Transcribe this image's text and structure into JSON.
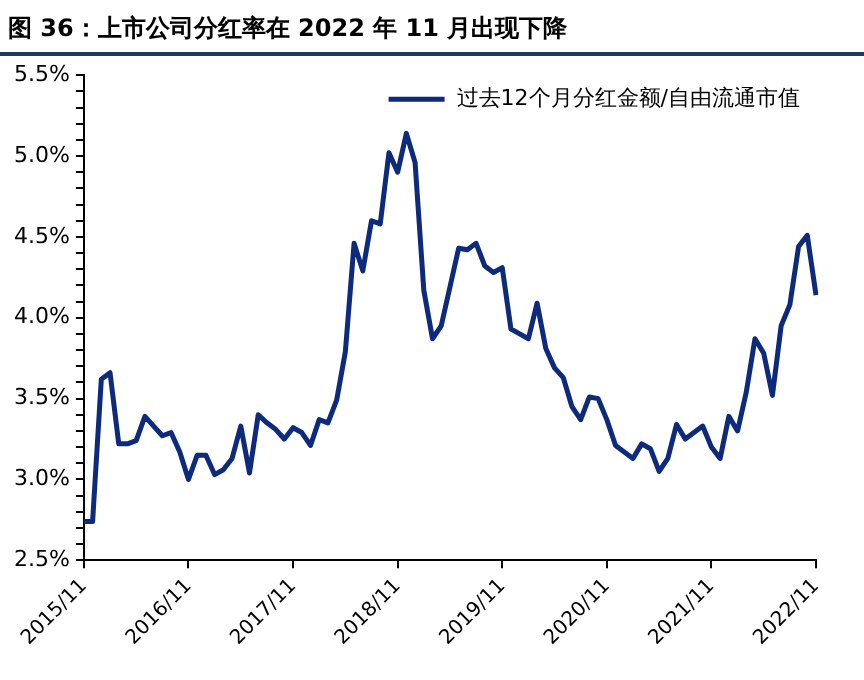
{
  "chart_data": {
    "type": "line",
    "title": "图 36：上市公司分红率在 2022 年 11 月出现下降",
    "categories": [
      "2015/11",
      null,
      null,
      null,
      null,
      null,
      null,
      null,
      null,
      null,
      null,
      null,
      "2016/11",
      null,
      null,
      null,
      null,
      null,
      null,
      null,
      null,
      null,
      null,
      null,
      "2017/11",
      null,
      null,
      null,
      null,
      null,
      null,
      null,
      null,
      null,
      null,
      null,
      "2018/11",
      null,
      null,
      null,
      null,
      null,
      null,
      null,
      null,
      null,
      null,
      null,
      "2019/11",
      null,
      null,
      null,
      null,
      null,
      null,
      null,
      null,
      null,
      null,
      null,
      "2020/11",
      null,
      null,
      null,
      null,
      null,
      null,
      null,
      null,
      null,
      null,
      null,
      "2021/11",
      null,
      null,
      null,
      null,
      null,
      null,
      null,
      null,
      null,
      null,
      null,
      "2022/11"
    ],
    "series": [
      {
        "name": "过去12个月分红金额/自由流通市值",
        "color": "#0d2a7c",
        "values": [
          2.74,
          2.74,
          3.62,
          3.66,
          3.22,
          3.22,
          3.24,
          3.39,
          3.33,
          3.27,
          3.29,
          3.17,
          3.0,
          3.15,
          3.15,
          3.03,
          3.06,
          3.13,
          3.33,
          3.04,
          3.4,
          3.35,
          3.31,
          3.25,
          3.32,
          3.29,
          3.21,
          3.37,
          3.35,
          3.49,
          3.79,
          4.46,
          4.29,
          4.6,
          4.58,
          5.02,
          4.9,
          5.14,
          4.96,
          4.17,
          3.87,
          3.95,
          4.19,
          4.43,
          4.42,
          4.46,
          4.32,
          4.28,
          4.31,
          3.93,
          3.9,
          3.87,
          4.09,
          3.81,
          3.69,
          3.63,
          3.45,
          3.37,
          3.51,
          3.5,
          3.37,
          3.21,
          3.17,
          3.13,
          3.22,
          3.19,
          3.05,
          3.13,
          3.34,
          3.25,
          3.29,
          3.33,
          3.2,
          3.13,
          3.39,
          3.3,
          3.54,
          3.87,
          3.78,
          3.52,
          3.95,
          4.08,
          4.44,
          4.51,
          4.14
        ]
      }
    ],
    "ylim": [
      2.5,
      5.5
    ],
    "yticks": [
      {
        "value": 2.5,
        "label": "2.5%"
      },
      {
        "value": 2.6,
        "label": null
      },
      {
        "value": 2.7,
        "label": null
      },
      {
        "value": 2.8,
        "label": null
      },
      {
        "value": 2.9,
        "label": null
      },
      {
        "value": 3.0,
        "label": "3.0%"
      },
      {
        "value": 3.1,
        "label": null
      },
      {
        "value": 3.2,
        "label": null
      },
      {
        "value": 3.3,
        "label": null
      },
      {
        "value": 3.4,
        "label": null
      },
      {
        "value": 3.5,
        "label": "3.5%"
      },
      {
        "value": 3.6,
        "label": null
      },
      {
        "value": 3.7,
        "label": null
      },
      {
        "value": 3.8,
        "label": null
      },
      {
        "value": 3.9,
        "label": null
      },
      {
        "value": 4.0,
        "label": "4.0%"
      },
      {
        "value": 4.1,
        "label": null
      },
      {
        "value": 4.2,
        "label": null
      },
      {
        "value": 4.3,
        "label": null
      },
      {
        "value": 4.4,
        "label": null
      },
      {
        "value": 4.5,
        "label": "4.5%"
      },
      {
        "value": 4.6,
        "label": null
      },
      {
        "value": 4.7,
        "label": null
      },
      {
        "value": 4.8,
        "label": null
      },
      {
        "value": 4.9,
        "label": null
      },
      {
        "value": 5.0,
        "label": "5.0%"
      },
      {
        "value": 5.1,
        "label": null
      },
      {
        "value": 5.2,
        "label": null
      },
      {
        "value": 5.3,
        "label": null
      },
      {
        "value": 5.4,
        "label": null
      },
      {
        "value": 5.5,
        "label": "5.5%"
      }
    ],
    "grid": false,
    "legend": "top right",
    "marker": "none",
    "line_style": "solid"
  }
}
